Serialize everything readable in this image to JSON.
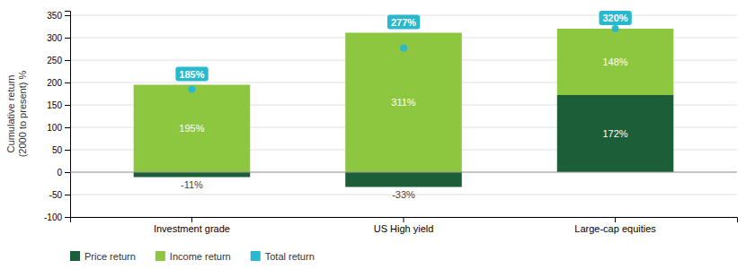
{
  "chart_data": {
    "type": "bar",
    "stacked": true,
    "grid": true,
    "data_labels": true,
    "legend": "bottom",
    "ylabel": "Cumulative return\n(2000 to present) %",
    "categories": [
      "Investment grade",
      "US High yield",
      "Large-cap equities"
    ],
    "series": [
      {
        "name": "Price return",
        "type": "bar",
        "color": "#1b5e38",
        "values": [
          -11,
          -33,
          172
        ],
        "value_labels": [
          "-11%",
          "-33%",
          "172%"
        ]
      },
      {
        "name": "Income return",
        "type": "bar",
        "color": "#8dc63f",
        "values": [
          195,
          311,
          148
        ],
        "value_labels": [
          "195%",
          "311%",
          "148%"
        ]
      },
      {
        "name": "Total return",
        "type": "scatter",
        "marker": "circle",
        "color": "#29b9ce",
        "values": [
          185,
          277,
          320
        ],
        "value_labels": [
          "185%",
          "277%",
          "320%"
        ]
      }
    ],
    "ylim": [
      -100,
      360
    ],
    "yticks": [
      -100,
      -50,
      0,
      50,
      100,
      150,
      200,
      250,
      300,
      350
    ]
  }
}
